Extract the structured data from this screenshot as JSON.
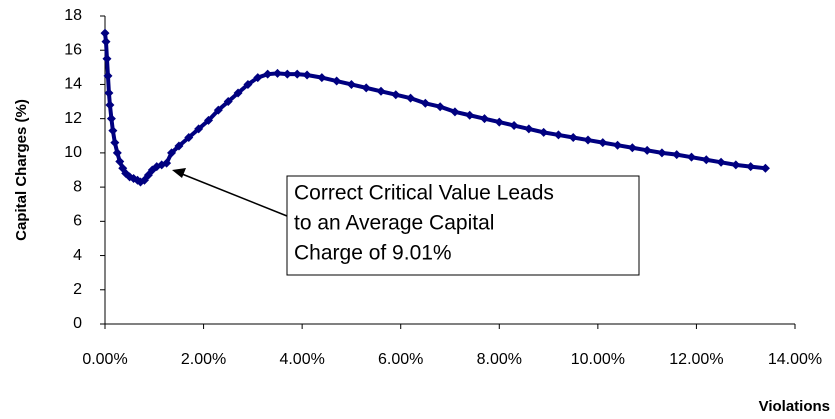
{
  "chart_data": {
    "type": "scatter",
    "x_label": "Violations",
    "y_label": "Capital Charges (%)",
    "annotation": [
      "Correct Critical Value Leads",
      "to an Average Capital",
      "Charge of 9.01%"
    ],
    "series": [
      {
        "color": "#000080",
        "x": [
          0.0,
          0.02,
          0.04,
          0.06,
          0.08,
          0.1,
          0.13,
          0.16,
          0.2,
          0.25,
          0.3,
          0.36,
          0.42,
          0.5,
          0.58,
          0.66,
          0.72,
          0.8,
          0.88,
          0.96,
          1.05,
          1.15,
          1.25,
          1.35,
          1.5,
          1.7,
          1.9,
          2.1,
          2.3,
          2.5,
          2.7,
          2.9,
          3.1,
          3.3,
          3.5,
          3.7,
          3.9,
          4.1,
          4.4,
          4.7,
          5.0,
          5.3,
          5.6,
          5.9,
          6.2,
          6.5,
          6.8,
          7.1,
          7.4,
          7.7,
          8.0,
          8.3,
          8.6,
          8.9,
          9.2,
          9.5,
          9.8,
          10.1,
          10.4,
          10.7,
          11.0,
          11.3,
          11.6,
          11.9,
          12.2,
          12.5,
          12.8,
          13.1,
          13.4
        ],
        "values": [
          17.0,
          16.5,
          15.5,
          14.5,
          13.5,
          12.8,
          12.0,
          11.3,
          10.6,
          10.0,
          9.5,
          9.1,
          8.8,
          8.6,
          8.5,
          8.4,
          8.3,
          8.4,
          8.7,
          9.0,
          9.2,
          9.3,
          9.4,
          10.0,
          10.4,
          10.9,
          11.4,
          11.9,
          12.5,
          13.0,
          13.5,
          14.0,
          14.4,
          14.6,
          14.65,
          14.6,
          14.6,
          14.55,
          14.4,
          14.2,
          14.0,
          13.8,
          13.6,
          13.4,
          13.2,
          12.9,
          12.7,
          12.4,
          12.2,
          12.0,
          11.8,
          11.6,
          11.4,
          11.2,
          11.05,
          10.9,
          10.75,
          10.6,
          10.45,
          10.3,
          10.15,
          10.0,
          9.9,
          9.75,
          9.6,
          9.45,
          9.3,
          9.2,
          9.1
        ]
      }
    ],
    "xlim": [
      0,
      14
    ],
    "xticks": [
      {
        "value": 0,
        "label": "0.00%"
      },
      {
        "value": 2,
        "label": "2.00%"
      },
      {
        "value": 4,
        "label": "4.00%"
      },
      {
        "value": 6,
        "label": "6.00%"
      },
      {
        "value": 8,
        "label": "8.00%"
      },
      {
        "value": 10,
        "label": "10.00%"
      },
      {
        "value": 12,
        "label": "12.00%"
      },
      {
        "value": 14,
        "label": "14.00%"
      }
    ],
    "ylim": [
      0,
      18
    ],
    "yticks": [
      0,
      2,
      4,
      6,
      8,
      10,
      12,
      14,
      16,
      18
    ]
  }
}
